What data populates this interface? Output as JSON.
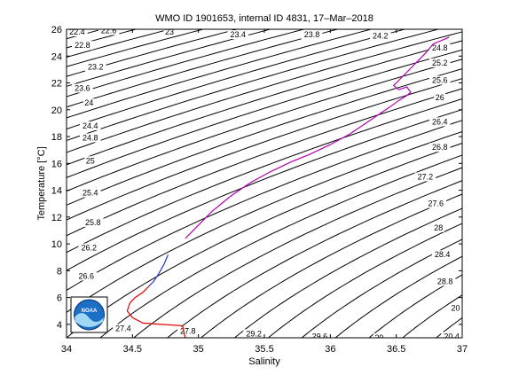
{
  "chart_data": {
    "type": "line",
    "title": "WMO ID 1901653, internal ID 4831, 17–Mar–2018",
    "xlabel": "Salinity",
    "ylabel": "Temperature [°C]",
    "xlim": [
      34,
      37
    ],
    "ylim": [
      3,
      26
    ],
    "xticks": [
      "34",
      "34.5",
      "35",
      "35.5",
      "36",
      "36.5",
      "37"
    ],
    "yticks": [
      "4",
      "6",
      "8",
      "10",
      "12",
      "14",
      "16",
      "18",
      "20",
      "22",
      "24",
      "26"
    ],
    "grid": false,
    "logo": "NOAA",
    "logo_colors": {
      "blue": "#1b6fc4",
      "dark": "#0b2e6e",
      "light": "#9fd7f5"
    },
    "density_contours": {
      "values": [
        22.4,
        22.8,
        23.2,
        23.6,
        24.0,
        24.4,
        24.8,
        25.2,
        25.6,
        26.0,
        26.4,
        26.8,
        27.2,
        27.6,
        28.0,
        28.4,
        28.8,
        29.2,
        29.6,
        30.0
      ],
      "visible_labels": [
        {
          "value": "22.4",
          "s": 34.08,
          "t": 25.8
        },
        {
          "value": "22.8",
          "s": 34.12,
          "t": 24.8
        },
        {
          "value": "23.2",
          "s": 34.22,
          "t": 23.2
        },
        {
          "value": "23.6",
          "s": 34.12,
          "t": 21.6
        },
        {
          "value": "24",
          "s": 34.17,
          "t": 20.5
        },
        {
          "value": "24.4",
          "s": 34.18,
          "t": 18.8
        },
        {
          "value": "24.8",
          "s": 34.18,
          "t": 17.9
        },
        {
          "value": "25",
          "s": 34.18,
          "t": 16.2
        },
        {
          "value": "25.4",
          "s": 34.18,
          "t": 13.8
        },
        {
          "value": "25.8",
          "s": 34.2,
          "t": 11.6
        },
        {
          "value": "26.2",
          "s": 34.17,
          "t": 9.7
        },
        {
          "value": "26.6",
          "s": 34.15,
          "t": 7.6
        },
        {
          "value": "27.4",
          "s": 34.43,
          "t": 3.7
        },
        {
          "value": "27.8",
          "s": 34.92,
          "t": 3.5
        },
        {
          "value": "29.2",
          "s": 35.42,
          "t": 3.3
        },
        {
          "value": "29.6",
          "s": 35.92,
          "t": 3.1
        },
        {
          "value": "29",
          "s": 36.37,
          "t": 3.0
        },
        {
          "value": "22.6",
          "s": 34.32,
          "t": 25.9
        },
        {
          "value": "23",
          "s": 34.78,
          "t": 25.8
        },
        {
          "value": "23.4",
          "s": 35.3,
          "t": 25.6
        },
        {
          "value": "23.8",
          "s": 35.86,
          "t": 25.6
        },
        {
          "value": "24.2",
          "s": 36.38,
          "t": 25.5
        },
        {
          "value": "24.8",
          "s": 36.83,
          "t": 24.6
        },
        {
          "value": "25.2",
          "s": 36.83,
          "t": 23.5
        },
        {
          "value": "25.6",
          "s": 36.83,
          "t": 22.2
        },
        {
          "value": "26",
          "s": 36.83,
          "t": 20.9
        },
        {
          "value": "26.4",
          "s": 36.83,
          "t": 19.1
        },
        {
          "value": "26.8",
          "s": 36.83,
          "t": 17.2
        },
        {
          "value": "27.2",
          "s": 36.72,
          "t": 15.0
        },
        {
          "value": "27.6",
          "s": 36.8,
          "t": 13.0
        },
        {
          "value": "28",
          "s": 36.82,
          "t": 11.2
        },
        {
          "value": "28.4",
          "s": 36.85,
          "t": 9.2
        },
        {
          "value": "28.8",
          "s": 36.87,
          "t": 7.2
        },
        {
          "value": "20",
          "s": 36.95,
          "t": 5.2
        },
        {
          "value": "20.4",
          "s": 36.92,
          "t": 3.1
        }
      ]
    },
    "series": [
      {
        "color": "#e00000",
        "x": [
          34.9,
          34.88,
          34.72,
          34.58,
          34.5,
          34.46,
          34.48,
          34.52,
          34.58,
          34.62
        ],
        "y": [
          3.0,
          3.9,
          4.0,
          4.1,
          4.5,
          5.0,
          5.6,
          6.0,
          6.4,
          6.8
        ]
      },
      {
        "color": "#2233cc",
        "x": [
          34.62,
          34.66,
          34.7,
          34.74,
          34.77
        ],
        "y": [
          6.8,
          7.2,
          7.8,
          8.5,
          9.2
        ]
      },
      {
        "color": "#b000b0",
        "x": [
          34.9,
          35.0,
          35.1,
          35.25,
          35.4,
          35.55,
          35.7,
          35.85,
          36.0,
          36.15,
          36.3,
          36.45,
          36.52,
          36.57,
          36.61,
          36.58,
          36.52,
          36.48,
          36.55,
          36.65,
          36.72,
          36.78,
          36.9
        ],
        "y": [
          10.4,
          11.4,
          12.4,
          13.6,
          14.6,
          15.4,
          16.1,
          16.7,
          17.4,
          18.2,
          19.2,
          20.2,
          20.7,
          21.0,
          21.3,
          21.7,
          21.5,
          21.8,
          22.5,
          23.5,
          24.2,
          24.9,
          25.4
        ]
      }
    ]
  }
}
